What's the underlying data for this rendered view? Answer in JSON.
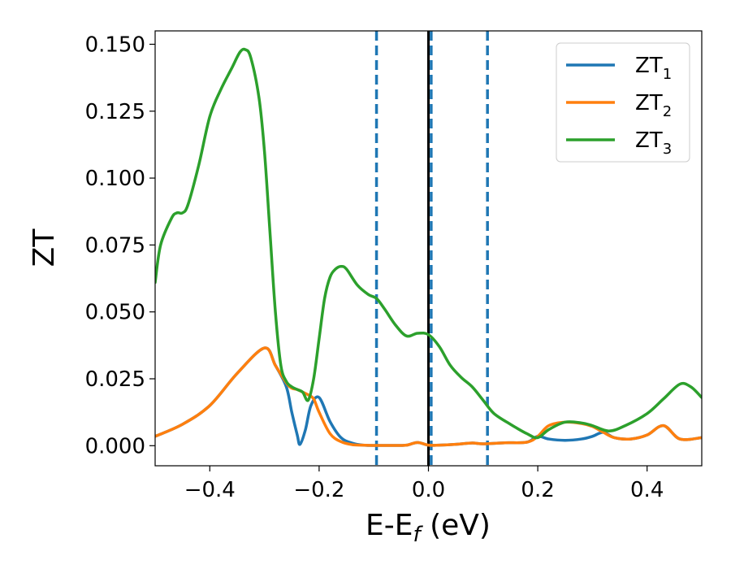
{
  "chart_data": {
    "type": "line",
    "xlabel": "E-E",
    "xlabel_sub": "f",
    "xlabel_unit": " (eV)",
    "ylabel": "ZT",
    "xlim": [
      -0.5,
      0.5
    ],
    "ylim": [
      -0.0075,
      0.155
    ],
    "xticks": [
      -0.4,
      -0.2,
      0.0,
      0.2,
      0.4
    ],
    "xtick_labels": [
      "−0.4",
      "−0.2",
      "0.0",
      "0.2",
      "0.4"
    ],
    "yticks": [
      0.0,
      0.025,
      0.05,
      0.075,
      0.1,
      0.125,
      0.15
    ],
    "ytick_labels": [
      "0.000",
      "0.025",
      "0.050",
      "0.075",
      "0.100",
      "0.125",
      "0.150"
    ],
    "grid": false,
    "legend": {
      "placement": "top-right"
    },
    "vertical_lines": [
      {
        "x": -0.095,
        "style": "dashed",
        "color": "#1f77b4"
      },
      {
        "x": 0.005,
        "style": "dashed",
        "color": "#1f77b4"
      },
      {
        "x": 0.108,
        "style": "dashed",
        "color": "#1f77b4"
      },
      {
        "x": 0.0,
        "style": "solid",
        "color": "#000000"
      }
    ],
    "series": [
      {
        "name": "ZT",
        "name_sub": "1",
        "color": "#1f77b4",
        "x": [
          -0.5,
          -0.45,
          -0.4,
          -0.35,
          -0.3,
          -0.28,
          -0.26,
          -0.25,
          -0.24,
          -0.235,
          -0.225,
          -0.215,
          -0.2,
          -0.18,
          -0.16,
          -0.14,
          -0.12,
          -0.1,
          -0.08,
          -0.06,
          -0.04,
          -0.02,
          0.0,
          0.02,
          0.05,
          0.08,
          0.1,
          0.14,
          0.18,
          0.2,
          0.22,
          0.25,
          0.28,
          0.3,
          0.32,
          0.34,
          0.37,
          0.4,
          0.43,
          0.46,
          0.5
        ],
        "y": [
          0.0035,
          0.008,
          0.015,
          0.027,
          0.0365,
          0.03,
          0.022,
          0.0125,
          0.004,
          0.0005,
          0.006,
          0.015,
          0.018,
          0.009,
          0.003,
          0.001,
          0.0002,
          0.0001,
          0.0001,
          0.0001,
          0.0002,
          0.0012,
          0.0002,
          0.0002,
          0.0005,
          0.001,
          0.0007,
          0.0011,
          0.0013,
          0.0035,
          0.0025,
          0.002,
          0.0025,
          0.0035,
          0.005,
          0.003,
          0.0025,
          0.004,
          0.0075,
          0.0025,
          0.003
        ]
      },
      {
        "name": "ZT",
        "name_sub": "2",
        "color": "#ff7f0e",
        "x": [
          -0.5,
          -0.45,
          -0.4,
          -0.35,
          -0.3,
          -0.28,
          -0.26,
          -0.25,
          -0.24,
          -0.23,
          -0.22,
          -0.21,
          -0.2,
          -0.18,
          -0.16,
          -0.14,
          -0.12,
          -0.1,
          -0.08,
          -0.06,
          -0.04,
          -0.02,
          0.0,
          0.02,
          0.05,
          0.08,
          0.1,
          0.14,
          0.18,
          0.2,
          0.22,
          0.25,
          0.28,
          0.3,
          0.32,
          0.34,
          0.37,
          0.4,
          0.43,
          0.46,
          0.5
        ],
        "y": [
          0.0035,
          0.008,
          0.015,
          0.027,
          0.0365,
          0.03,
          0.0235,
          0.0215,
          0.021,
          0.02,
          0.019,
          0.0175,
          0.0125,
          0.0045,
          0.0015,
          0.0004,
          0.0002,
          0.0001,
          0.0001,
          0.0001,
          0.0002,
          0.0012,
          0.0002,
          0.0002,
          0.0005,
          0.001,
          0.0007,
          0.0011,
          0.0013,
          0.0035,
          0.0075,
          0.0088,
          0.0083,
          0.0072,
          0.005,
          0.003,
          0.0025,
          0.004,
          0.0075,
          0.0025,
          0.003
        ]
      },
      {
        "name": "ZT",
        "name_sub": "3",
        "color": "#2ca02c",
        "x": [
          -0.5,
          -0.49,
          -0.47,
          -0.46,
          -0.45,
          -0.44,
          -0.42,
          -0.4,
          -0.38,
          -0.36,
          -0.345,
          -0.335,
          -0.325,
          -0.31,
          -0.3,
          -0.29,
          -0.28,
          -0.27,
          -0.26,
          -0.25,
          -0.24,
          -0.23,
          -0.22,
          -0.21,
          -0.2,
          -0.19,
          -0.18,
          -0.17,
          -0.16,
          -0.15,
          -0.13,
          -0.11,
          -0.095,
          -0.08,
          -0.06,
          -0.04,
          -0.02,
          0.0,
          0.02,
          0.04,
          0.06,
          0.08,
          0.1,
          0.12,
          0.15,
          0.18,
          0.2,
          0.22,
          0.25,
          0.28,
          0.3,
          0.33,
          0.36,
          0.4,
          0.43,
          0.46,
          0.48,
          0.5
        ],
        "y": [
          0.061,
          0.075,
          0.085,
          0.087,
          0.087,
          0.09,
          0.105,
          0.123,
          0.133,
          0.141,
          0.147,
          0.148,
          0.145,
          0.13,
          0.11,
          0.08,
          0.05,
          0.03,
          0.024,
          0.022,
          0.021,
          0.02,
          0.017,
          0.025,
          0.04,
          0.055,
          0.063,
          0.066,
          0.067,
          0.066,
          0.06,
          0.0565,
          0.055,
          0.051,
          0.045,
          0.041,
          0.042,
          0.0415,
          0.037,
          0.03,
          0.0255,
          0.022,
          0.017,
          0.012,
          0.008,
          0.0045,
          0.003,
          0.006,
          0.0088,
          0.0085,
          0.0075,
          0.0055,
          0.0075,
          0.012,
          0.0175,
          0.023,
          0.022,
          0.018
        ]
      }
    ]
  }
}
